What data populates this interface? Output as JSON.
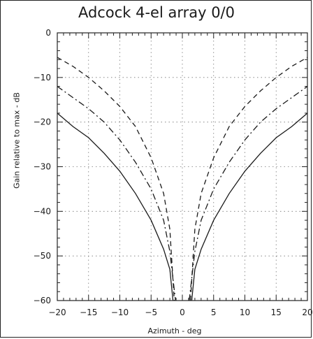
{
  "chart_data": {
    "type": "line",
    "title": "Adcock 4-el array 0/0",
    "xlabel": "Azimuth - deg",
    "ylabel": "Gain relative to max - dB",
    "xlim": [
      -20,
      20
    ],
    "ylim": [
      -60,
      0
    ],
    "xticks": [
      -20,
      -15,
      -10,
      -5,
      0,
      5,
      10,
      15,
      20
    ],
    "yticks": [
      0,
      -10,
      -20,
      -30,
      -40,
      -50,
      -60
    ],
    "grid": true,
    "legend": "none",
    "series": [
      {
        "style": "dashed",
        "x": [
          -20,
          -17.5,
          -15,
          -12.5,
          -10,
          -7.5,
          -5,
          -3,
          -2,
          -1.3,
          1.3,
          2,
          3,
          5,
          7.5,
          10,
          12.5,
          15,
          17.5,
          20
        ],
        "y": [
          -5.5,
          -7.5,
          -10,
          -13,
          -16.5,
          -21,
          -28,
          -36,
          -44,
          -60,
          -60,
          -44,
          -36,
          -28,
          -21,
          -16.5,
          -13,
          -10,
          -7.5,
          -5.5
        ]
      },
      {
        "style": "dashdot",
        "x": [
          -20,
          -17.5,
          -15,
          -12.5,
          -10,
          -7.5,
          -5,
          -3,
          -2,
          -1.1,
          1.1,
          2,
          3,
          5,
          7.5,
          10,
          12.5,
          15,
          17.5,
          20
        ],
        "y": [
          -12,
          -14.5,
          -17,
          -20,
          -24,
          -29,
          -35,
          -42,
          -49,
          -60,
          -60,
          -49,
          -42,
          -35,
          -29,
          -24,
          -20,
          -17,
          -14.5,
          -12
        ]
      },
      {
        "style": "solid",
        "x": [
          -20,
          -17.5,
          -15,
          -12.5,
          -10,
          -7.5,
          -5,
          -3,
          -2,
          -1.5,
          1.5,
          2,
          3,
          5,
          7.5,
          10,
          12.5,
          15,
          17.5,
          20
        ],
        "y": [
          -18,
          -21,
          -23.5,
          -27,
          -31,
          -36,
          -42,
          -48.5,
          -53,
          -60,
          -60,
          -53,
          -48.5,
          -42,
          -36,
          -31,
          -27,
          -23.5,
          -21,
          -18
        ]
      }
    ]
  }
}
